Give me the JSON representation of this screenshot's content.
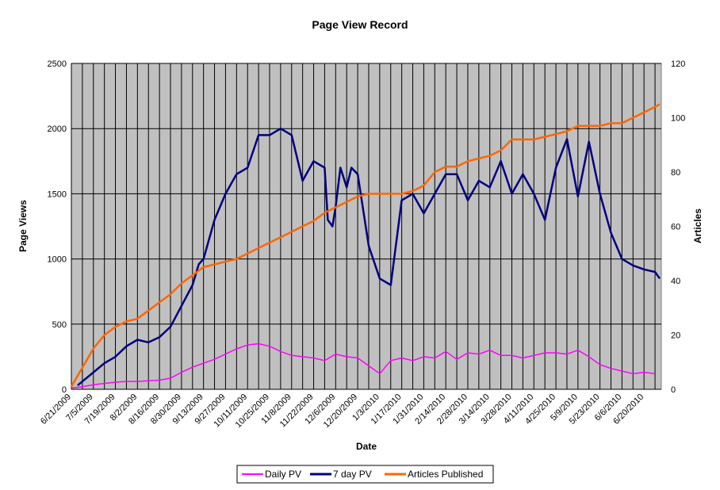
{
  "chart_data": {
    "type": "line",
    "title": "Page View Record",
    "xlabel": "Date",
    "ylabel": "Page Views",
    "y2label": "Articles",
    "ylim": [
      0,
      2500
    ],
    "y2lim": [
      0,
      120
    ],
    "yticks": [
      0,
      500,
      1000,
      1500,
      2000,
      2500
    ],
    "y2ticks": [
      0,
      20,
      40,
      60,
      80,
      100,
      120
    ],
    "x_tick_labels": [
      "6/21/2009",
      "7/5/2009",
      "7/19/2009",
      "8/2/2009",
      "8/16/2009",
      "8/30/2009",
      "9/13/2009",
      "9/27/2009",
      "10/11/2009",
      "10/25/2009",
      "11/8/2009",
      "11/22/2009",
      "12/6/2009",
      "12/20/2009",
      "1/3/2010",
      "1/17/2010",
      "1/31/2010",
      "2/14/2010",
      "2/28/2010",
      "3/14/2010",
      "3/28/2010",
      "4/11/2010",
      "4/25/2010",
      "5/9/2010",
      "5/23/2010",
      "6/6/2010",
      "6/20/2010"
    ],
    "grid": true,
    "plot_background": "#c0c0c0",
    "legend_position": "bottom",
    "series": [
      {
        "name": "Daily PV",
        "color": "#ff00ff",
        "axis": "left",
        "x": [
          "6/21/2009",
          "6/28/2009",
          "7/5/2009",
          "7/12/2009",
          "7/19/2009",
          "7/26/2009",
          "8/2/2009",
          "8/9/2009",
          "8/16/2009",
          "8/23/2009",
          "8/30/2009",
          "9/6/2009",
          "9/13/2009",
          "9/20/2009",
          "9/27/2009",
          "10/4/2009",
          "10/11/2009",
          "10/18/2009",
          "10/25/2009",
          "11/1/2009",
          "11/8/2009",
          "11/15/2009",
          "11/22/2009",
          "11/29/2009",
          "12/6/2009",
          "12/13/2009",
          "12/20/2009",
          "12/27/2009",
          "1/3/2010",
          "1/10/2010",
          "1/17/2010",
          "1/24/2010",
          "1/31/2010",
          "2/7/2010",
          "2/14/2010",
          "2/21/2010",
          "2/28/2010",
          "3/7/2010",
          "3/14/2010",
          "3/21/2010",
          "3/28/2010",
          "4/4/2010",
          "4/11/2010",
          "4/18/2010",
          "4/25/2010",
          "5/2/2010",
          "5/9/2010",
          "5/16/2010",
          "5/23/2010",
          "5/30/2010",
          "6/6/2010",
          "6/13/2010",
          "6/20/2010",
          "6/27/2010"
        ],
        "values": [
          10,
          20,
          35,
          45,
          55,
          60,
          60,
          65,
          70,
          85,
          130,
          170,
          200,
          230,
          270,
          310,
          340,
          350,
          330,
          290,
          260,
          250,
          240,
          220,
          270,
          250,
          240,
          180,
          120,
          220,
          240,
          220,
          250,
          240,
          290,
          230,
          280,
          270,
          300,
          260,
          260,
          240,
          260,
          280,
          280,
          270,
          300,
          250,
          190,
          160,
          140,
          120,
          130,
          120
        ]
      },
      {
        "name": "7 day PV",
        "color": "#000080",
        "axis": "left",
        "x": [
          "6/25/2009",
          "6/28/2009",
          "7/5/2009",
          "7/12/2009",
          "7/19/2009",
          "7/26/2009",
          "8/2/2009",
          "8/9/2009",
          "8/16/2009",
          "8/23/2009",
          "8/30/2009",
          "9/6/2009",
          "9/10/2009",
          "9/13/2009",
          "9/20/2009",
          "9/27/2009",
          "10/4/2009",
          "10/11/2009",
          "10/18/2009",
          "10/25/2009",
          "11/1/2009",
          "11/8/2009",
          "11/15/2009",
          "11/22/2009",
          "11/29/2009",
          "12/1/2009",
          "12/4/2009",
          "12/6/2009",
          "12/9/2009",
          "12/13/2009",
          "12/16/2009",
          "12/20/2009",
          "12/27/2009",
          "1/3/2010",
          "1/10/2010",
          "1/17/2010",
          "1/24/2010",
          "1/31/2010",
          "2/7/2010",
          "2/14/2010",
          "2/21/2010",
          "2/28/2010",
          "3/7/2010",
          "3/14/2010",
          "3/21/2010",
          "3/28/2010",
          "4/4/2010",
          "4/11/2010",
          "4/18/2010",
          "4/25/2010",
          "5/2/2010",
          "5/9/2010",
          "5/16/2010",
          "5/23/2010",
          "5/30/2010",
          "6/6/2010",
          "6/13/2010",
          "6/20/2010",
          "6/27/2010",
          "6/30/2010"
        ],
        "values": [
          30,
          60,
          130,
          200,
          250,
          330,
          380,
          360,
          400,
          480,
          640,
          800,
          960,
          1000,
          1300,
          1500,
          1650,
          1700,
          1950,
          1950,
          2000,
          1950,
          1600,
          1750,
          1700,
          1300,
          1250,
          1400,
          1700,
          1550,
          1700,
          1650,
          1100,
          850,
          800,
          1450,
          1500,
          1350,
          1500,
          1650,
          1650,
          1450,
          1600,
          1550,
          1750,
          1500,
          1650,
          1500,
          1300,
          1700,
          1920,
          1480,
          1900,
          1500,
          1200,
          1000,
          950,
          920,
          900,
          850
        ]
      },
      {
        "name": "Articles Published",
        "color": "#ff6600",
        "axis": "right",
        "x": [
          "6/21/2009",
          "6/28/2009",
          "7/5/2009",
          "7/12/2009",
          "7/19/2009",
          "7/26/2009",
          "8/2/2009",
          "8/9/2009",
          "8/16/2009",
          "8/23/2009",
          "8/30/2009",
          "9/6/2009",
          "9/13/2009",
          "9/20/2009",
          "9/27/2009",
          "10/4/2009",
          "10/11/2009",
          "10/18/2009",
          "10/25/2009",
          "11/1/2009",
          "11/8/2009",
          "11/15/2009",
          "11/22/2009",
          "11/29/2009",
          "12/6/2009",
          "12/13/2009",
          "12/20/2009",
          "12/27/2009",
          "1/3/2010",
          "1/10/2010",
          "1/17/2010",
          "1/24/2010",
          "1/31/2010",
          "2/7/2010",
          "2/14/2010",
          "2/21/2010",
          "2/28/2010",
          "3/7/2010",
          "3/14/2010",
          "3/21/2010",
          "3/28/2010",
          "4/4/2010",
          "4/11/2010",
          "4/18/2010",
          "4/25/2010",
          "5/2/2010",
          "5/9/2010",
          "5/16/2010",
          "5/23/2010",
          "5/30/2010",
          "6/6/2010",
          "6/13/2010",
          "6/20/2010",
          "6/27/2010",
          "6/30/2010"
        ],
        "values": [
          1,
          8,
          15,
          20,
          23,
          25,
          26,
          29,
          32,
          35,
          39,
          42,
          45,
          46,
          47,
          48,
          50,
          52,
          54,
          56,
          58,
          60,
          62,
          65,
          67,
          69,
          71,
          72,
          72,
          72,
          72,
          73,
          75,
          80,
          82,
          82,
          84,
          85,
          86,
          88,
          92,
          92,
          92,
          93,
          94,
          95,
          97,
          97,
          97,
          98,
          98,
          100,
          102,
          104,
          105
        ]
      }
    ]
  }
}
